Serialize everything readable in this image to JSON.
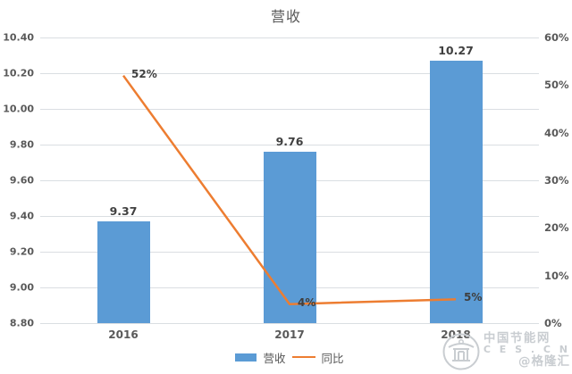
{
  "title": "营收",
  "watermark": {
    "line1": "中国节能网",
    "line2": "C E S . C N",
    "line3": "@格隆汇"
  },
  "chart_data": {
    "type": "bar",
    "subtype": "combo-bar-line",
    "title": "营收",
    "categories": [
      "2016",
      "2017",
      "2018"
    ],
    "series": [
      {
        "name": "营收",
        "type": "bar",
        "axis": "left",
        "values": [
          9.37,
          9.76,
          10.27
        ],
        "labels": [
          "9.37",
          "9.76",
          "10.27"
        ],
        "color": "#5b9bd5"
      },
      {
        "name": "同比",
        "type": "line",
        "axis": "right",
        "values": [
          52,
          4,
          5
        ],
        "labels": [
          "52%",
          "4%",
          "5%"
        ],
        "color": "#ed7d31"
      }
    ],
    "left_axis": {
      "min": 8.8,
      "max": 10.4,
      "step": 0.2,
      "ticks": [
        "8.80",
        "9.00",
        "9.20",
        "9.40",
        "9.60",
        "9.80",
        "10.00",
        "10.20",
        "10.40"
      ]
    },
    "right_axis": {
      "min": 0,
      "max": 60,
      "step": 10,
      "ticks": [
        "0%",
        "10%",
        "20%",
        "30%",
        "40%",
        "50%",
        "60%"
      ]
    },
    "grid": true,
    "legend_position": "bottom"
  }
}
